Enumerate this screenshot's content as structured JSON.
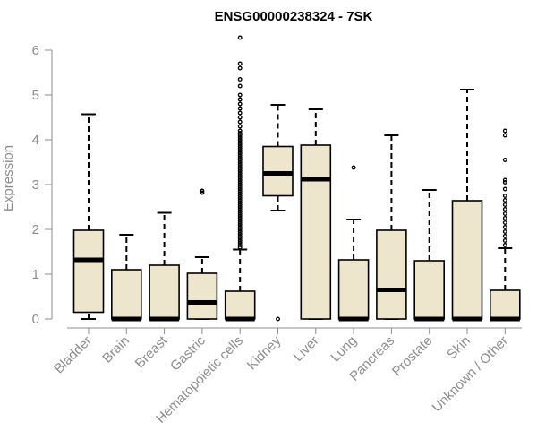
{
  "chart_data": {
    "type": "boxplot",
    "title": "ENSG00000238324 - 7SK",
    "ylabel": "Expression",
    "xlabel": "",
    "ylim": [
      0,
      6.3
    ],
    "yticks": [
      0,
      1,
      2,
      3,
      4,
      5,
      6
    ],
    "box_fill": "#ede6cc",
    "categories": [
      "Bladder",
      "Brain",
      "Breast",
      "Gastric",
      "Hematopoietic cells",
      "Kidney",
      "Liver",
      "Lung",
      "Pancreas",
      "Prostate",
      "Skin",
      "Unknown / Other"
    ],
    "boxes": [
      {
        "name": "Bladder",
        "whisker_low": 0.0,
        "q1": 0.15,
        "median": 1.32,
        "q3": 1.98,
        "whisker_high": 4.57,
        "outliers": []
      },
      {
        "name": "Brain",
        "whisker_low": 0.0,
        "q1": 0.0,
        "median": 0.0,
        "q3": 1.1,
        "whisker_high": 1.88,
        "outliers": []
      },
      {
        "name": "Breast",
        "whisker_low": 0.0,
        "q1": 0.0,
        "median": 0.0,
        "q3": 1.2,
        "whisker_high": 2.37,
        "outliers": []
      },
      {
        "name": "Gastric",
        "whisker_low": 0.0,
        "q1": 0.0,
        "median": 0.37,
        "q3": 1.02,
        "whisker_high": 1.38,
        "outliers": [
          2.82,
          2.86
        ]
      },
      {
        "name": "Hematopoietic cells",
        "whisker_low": 0.0,
        "q1": 0.0,
        "median": 0.0,
        "q3": 0.62,
        "whisker_high": 1.55,
        "outliers": [
          1.6,
          1.65,
          1.7,
          1.75,
          1.8,
          1.85,
          1.9,
          1.95,
          2.0,
          2.05,
          2.1,
          2.15,
          2.2,
          2.25,
          2.3,
          2.35,
          2.4,
          2.45,
          2.5,
          2.55,
          2.6,
          2.65,
          2.7,
          2.75,
          2.8,
          2.85,
          2.9,
          2.95,
          3.0,
          3.05,
          3.1,
          3.15,
          3.2,
          3.25,
          3.3,
          3.35,
          3.4,
          3.45,
          3.5,
          3.55,
          3.6,
          3.65,
          3.7,
          3.75,
          3.8,
          3.85,
          3.9,
          3.95,
          4.0,
          4.05,
          4.1,
          4.15,
          4.2,
          4.3,
          4.4,
          4.5,
          4.6,
          4.7,
          4.8,
          4.9,
          5.0,
          5.2,
          5.35,
          5.6,
          5.7,
          6.28
        ]
      },
      {
        "name": "Kidney",
        "whisker_low": 2.42,
        "q1": 2.75,
        "median": 3.25,
        "q3": 3.85,
        "whisker_high": 4.78,
        "outliers": [
          0.0
        ]
      },
      {
        "name": "Liver",
        "whisker_low": 0.0,
        "q1": 0.0,
        "median": 3.12,
        "q3": 3.88,
        "whisker_high": 4.68,
        "outliers": []
      },
      {
        "name": "Lung",
        "whisker_low": 0.0,
        "q1": 0.0,
        "median": 0.0,
        "q3": 1.32,
        "whisker_high": 2.22,
        "outliers": [
          3.38
        ]
      },
      {
        "name": "Pancreas",
        "whisker_low": 0.0,
        "q1": 0.0,
        "median": 0.65,
        "q3": 1.98,
        "whisker_high": 4.1,
        "outliers": []
      },
      {
        "name": "Prostate",
        "whisker_low": 0.0,
        "q1": 0.0,
        "median": 0.0,
        "q3": 1.3,
        "whisker_high": 2.88,
        "outliers": []
      },
      {
        "name": "Skin",
        "whisker_low": 0.0,
        "q1": 0.0,
        "median": 0.0,
        "q3": 2.64,
        "whisker_high": 5.12,
        "outliers": []
      },
      {
        "name": "Unknown / Other",
        "whisker_low": 0.0,
        "q1": 0.0,
        "median": 0.0,
        "q3": 0.64,
        "whisker_high": 1.58,
        "outliers": [
          1.65,
          1.75,
          1.85,
          1.95,
          2.05,
          2.15,
          2.25,
          2.35,
          2.45,
          2.55,
          2.65,
          2.75,
          2.9,
          3.05,
          3.1,
          3.55,
          4.1,
          4.2
        ]
      }
    ]
  }
}
